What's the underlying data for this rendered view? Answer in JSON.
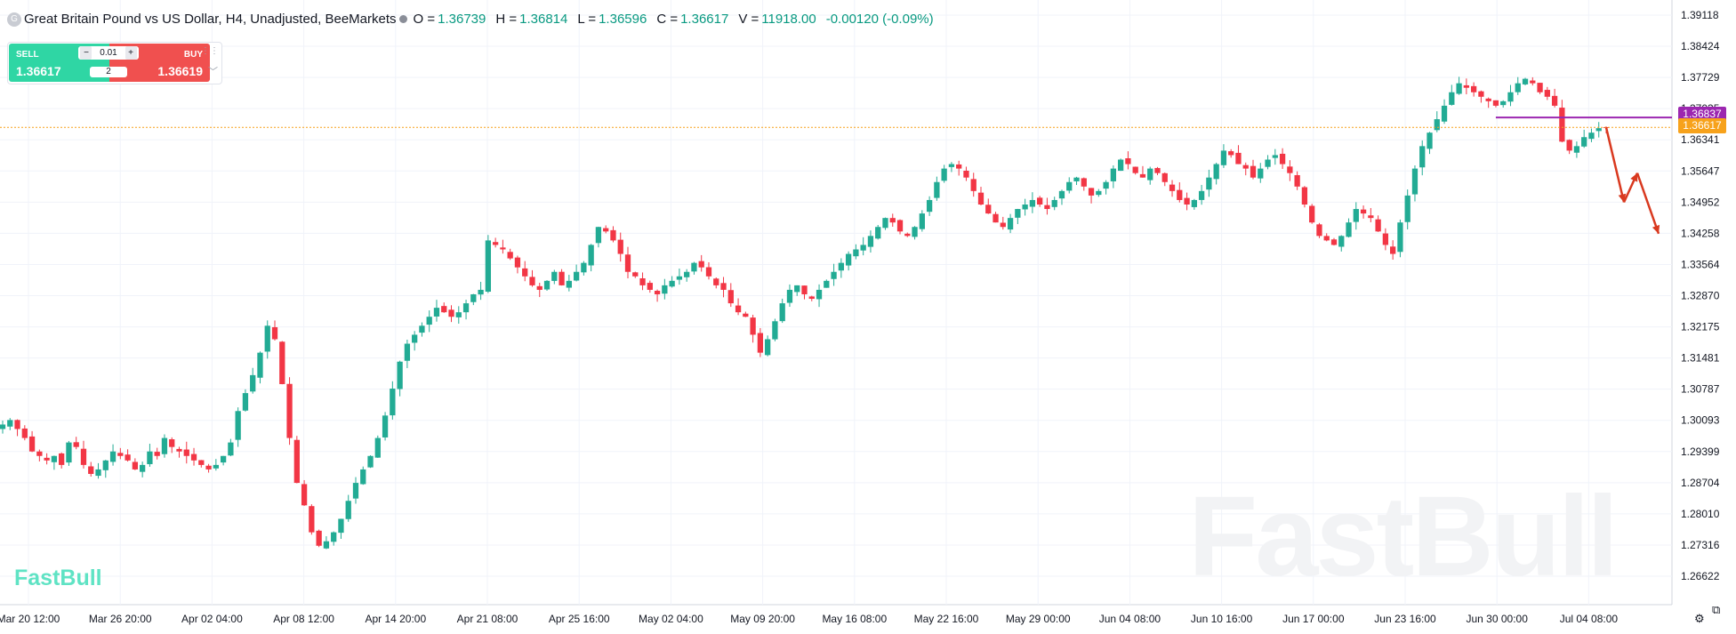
{
  "header": {
    "symbol_icon": "G",
    "title": "Great Britain Pound vs US Dollar, H4, Unadjusted, BeeMarkets",
    "ohlc": [
      {
        "key": "O =",
        "value": "1.36739"
      },
      {
        "key": "H =",
        "value": "1.36814"
      },
      {
        "key": "L =",
        "value": "1.36596"
      },
      {
        "key": "C =",
        "value": "1.36617"
      },
      {
        "key": "V =",
        "value": "11918.00"
      }
    ],
    "change": "-0.00120 (-0.09%)"
  },
  "trade_panel": {
    "sell_label": "SELL",
    "buy_label": "BUY",
    "sell_price": "1.36617",
    "buy_price": "1.36619",
    "lot_minus": "−",
    "lot_size": "0.01",
    "lot_plus": "+",
    "quantity": "2",
    "drag_icon": "⋮⋮",
    "expand_icon": "﹀"
  },
  "price_tags": {
    "horizontal_line_price": "1.36837",
    "last_price": "1.36617"
  },
  "logo": "FastBull",
  "watermark": "FastBull",
  "bottom_icons": {
    "settings": "⚙",
    "layout": "⧉"
  },
  "colors": {
    "up": "#22ab94",
    "down": "#f23645",
    "hline": "#9c27b0",
    "last": "#f7a21b",
    "arrows": "#d9391f"
  },
  "chart_data": {
    "type": "candlestick",
    "title": "Great Britain Pound vs US Dollar, H4, Unadjusted, BeeMarkets",
    "timeframe": "H4",
    "ylim": [
      1.2605,
      1.3945
    ],
    "y_ticks": [
      "1.39118",
      "1.38424",
      "1.37729",
      "1.37035",
      "1.36341",
      "1.35647",
      "1.34952",
      "1.34258",
      "1.33564",
      "1.32870",
      "1.32175",
      "1.31481",
      "1.30787",
      "1.30093",
      "1.29399",
      "1.28704",
      "1.28010",
      "1.27316",
      "1.26622"
    ],
    "x_ticks": [
      "Mar 20 12:00",
      "Mar 26 20:00",
      "Apr 02 04:00",
      "Apr 08 12:00",
      "Apr 14 20:00",
      "Apr 21 08:00",
      "Apr 25 16:00",
      "May 02 04:00",
      "May 09 20:00",
      "May 16 08:00",
      "May 22 16:00",
      "May 29 00:00",
      "Jun 04 08:00",
      "Jun 10 16:00",
      "Jun 17 00:00",
      "Jun 23 16:00",
      "Jun 30 00:00",
      "Jul 04 08:00"
    ],
    "grid": true,
    "last_price": 1.36617,
    "horizontal_line": 1.36837,
    "close_path": [
      1.3,
      1.301,
      1.299,
      1.297,
      1.294,
      1.293,
      1.292,
      1.293,
      1.291,
      1.296,
      1.295,
      1.291,
      1.289,
      1.29,
      1.292,
      1.294,
      1.293,
      1.292,
      1.29,
      1.291,
      1.294,
      1.293,
      1.297,
      1.295,
      1.294,
      1.293,
      1.292,
      1.291,
      1.29,
      1.291,
      1.293,
      1.296,
      1.303,
      1.307,
      1.311,
      1.316,
      1.322,
      1.319,
      1.309,
      1.297,
      1.287,
      1.282,
      1.276,
      1.273,
      1.274,
      1.276,
      1.279,
      1.283,
      1.287,
      1.29,
      1.293,
      1.297,
      1.302,
      1.308,
      1.314,
      1.318,
      1.32,
      1.322,
      1.324,
      1.326,
      1.325,
      1.324,
      1.325,
      1.327,
      1.329,
      1.33,
      1.341,
      1.34,
      1.339,
      1.337,
      1.335,
      1.333,
      1.331,
      1.33,
      1.332,
      1.334,
      1.331,
      1.332,
      1.334,
      1.336,
      1.34,
      1.344,
      1.343,
      1.341,
      1.338,
      1.334,
      1.333,
      1.331,
      1.33,
      1.329,
      1.331,
      1.332,
      1.333,
      1.334,
      1.336,
      1.335,
      1.333,
      1.331,
      1.33,
      1.327,
      1.325,
      1.324,
      1.32,
      1.316,
      1.319,
      1.323,
      1.327,
      1.33,
      1.331,
      1.329,
      1.328,
      1.33,
      1.332,
      1.334,
      1.336,
      1.338,
      1.339,
      1.34,
      1.342,
      1.344,
      1.346,
      1.345,
      1.343,
      1.342,
      1.344,
      1.347,
      1.35,
      1.354,
      1.357,
      1.358,
      1.357,
      1.355,
      1.352,
      1.349,
      1.347,
      1.345,
      1.344,
      1.346,
      1.348,
      1.349,
      1.35,
      1.349,
      1.348,
      1.35,
      1.352,
      1.354,
      1.355,
      1.353,
      1.351,
      1.352,
      1.354,
      1.357,
      1.359,
      1.358,
      1.356,
      1.355,
      1.357,
      1.356,
      1.354,
      1.352,
      1.35,
      1.349,
      1.35,
      1.352,
      1.355,
      1.358,
      1.361,
      1.36,
      1.358,
      1.357,
      1.355,
      1.357,
      1.359,
      1.36,
      1.358,
      1.356,
      1.353,
      1.349,
      1.345,
      1.342,
      1.341,
      1.34,
      1.342,
      1.345,
      1.348,
      1.347,
      1.346,
      1.343,
      1.34,
      1.338,
      1.345,
      1.351,
      1.357,
      1.362,
      1.365,
      1.368,
      1.371,
      1.374,
      1.376,
      1.375,
      1.374,
      1.373,
      1.372,
      1.371,
      1.372,
      1.374,
      1.376,
      1.377,
      1.376,
      1.374,
      1.373,
      1.371,
      1.363,
      1.361,
      1.362,
      1.364,
      1.365,
      1.366,
      1.36617
    ],
    "trendline": {
      "from_price": 1.36837,
      "label": "1.36837"
    },
    "annotations": [
      "down-arrow",
      "up-arrow",
      "down-arrow"
    ]
  }
}
